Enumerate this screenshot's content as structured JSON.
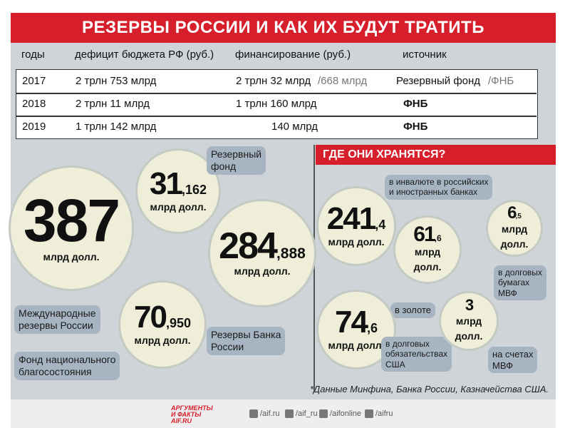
{
  "header": {
    "title": "РЕЗЕРВЫ РОССИИ И КАК ИХ БУДУТ ТРАТИТЬ"
  },
  "table": {
    "columns": [
      "годы",
      "дефицит бюджета РФ (руб.)",
      "финансирование (руб.)",
      "источник"
    ],
    "rows": [
      {
        "year": "2017",
        "deficit": "2 трлн 753 млрд",
        "financing": "2 трлн 32 млрд",
        "financing_extra": "/668 млрд",
        "source": "Резервный фонд",
        "source_extra": "/ФНБ"
      },
      {
        "year": "2018",
        "deficit": "2 трлн 11 млрд",
        "financing": "1 трлн 160 млрд",
        "source": "ФНБ"
      },
      {
        "year": "2019",
        "deficit": "1 трлн 142 млрд",
        "financing": "140 млрд",
        "source": "ФНБ"
      }
    ]
  },
  "reserves": [
    {
      "int": "387",
      "unit": "млрд долл.",
      "label": [
        "Международные",
        "резервы России"
      ]
    },
    {
      "int": "31",
      "frac": ",162",
      "unit": "млрд долл.",
      "label": [
        "Резервный",
        "фонд"
      ]
    },
    {
      "int": "284",
      "frac": ",888",
      "unit": "млрд долл.",
      "label": [
        "Резервы Банка",
        "России"
      ]
    },
    {
      "int": "70",
      "frac": ",950",
      "unit": "млрд долл.",
      "label": [
        "Фонд национального",
        "благосостояния"
      ]
    }
  ],
  "storage": {
    "title": "ГДЕ ОНИ ХРАНЯТСЯ?",
    "items": [
      {
        "int": "241",
        "frac": ",4",
        "unit": "млрд долл.",
        "label": [
          "в инвалюте в российских",
          "и иностранных банках"
        ]
      },
      {
        "int": "61",
        "frac": ",6",
        "unit": "млрд долл.",
        "label": [
          "в золоте"
        ]
      },
      {
        "int": "6",
        "frac": ",5",
        "unit": "млрд долл.",
        "label": [
          "в долговых",
          "бумагах",
          "МВФ"
        ]
      },
      {
        "int": "74",
        "frac": ",6",
        "unit": "млрд долл.",
        "label": [
          "в долговых",
          "обязательствах",
          "США"
        ]
      },
      {
        "int": "3",
        "unit": "млрд долл.",
        "label": [
          "на счетах",
          "МВФ"
        ]
      }
    ]
  },
  "footnote": "*Данные Минфина, Банка России, Казначейства США.",
  "footer": {
    "logo": [
      "АРГУМЕНТЫ",
      "И ФАКТЫ",
      "AIF.RU"
    ],
    "links": [
      "/aif.ru",
      "/aif_ru",
      "/aifonline",
      "/aifru"
    ]
  }
}
